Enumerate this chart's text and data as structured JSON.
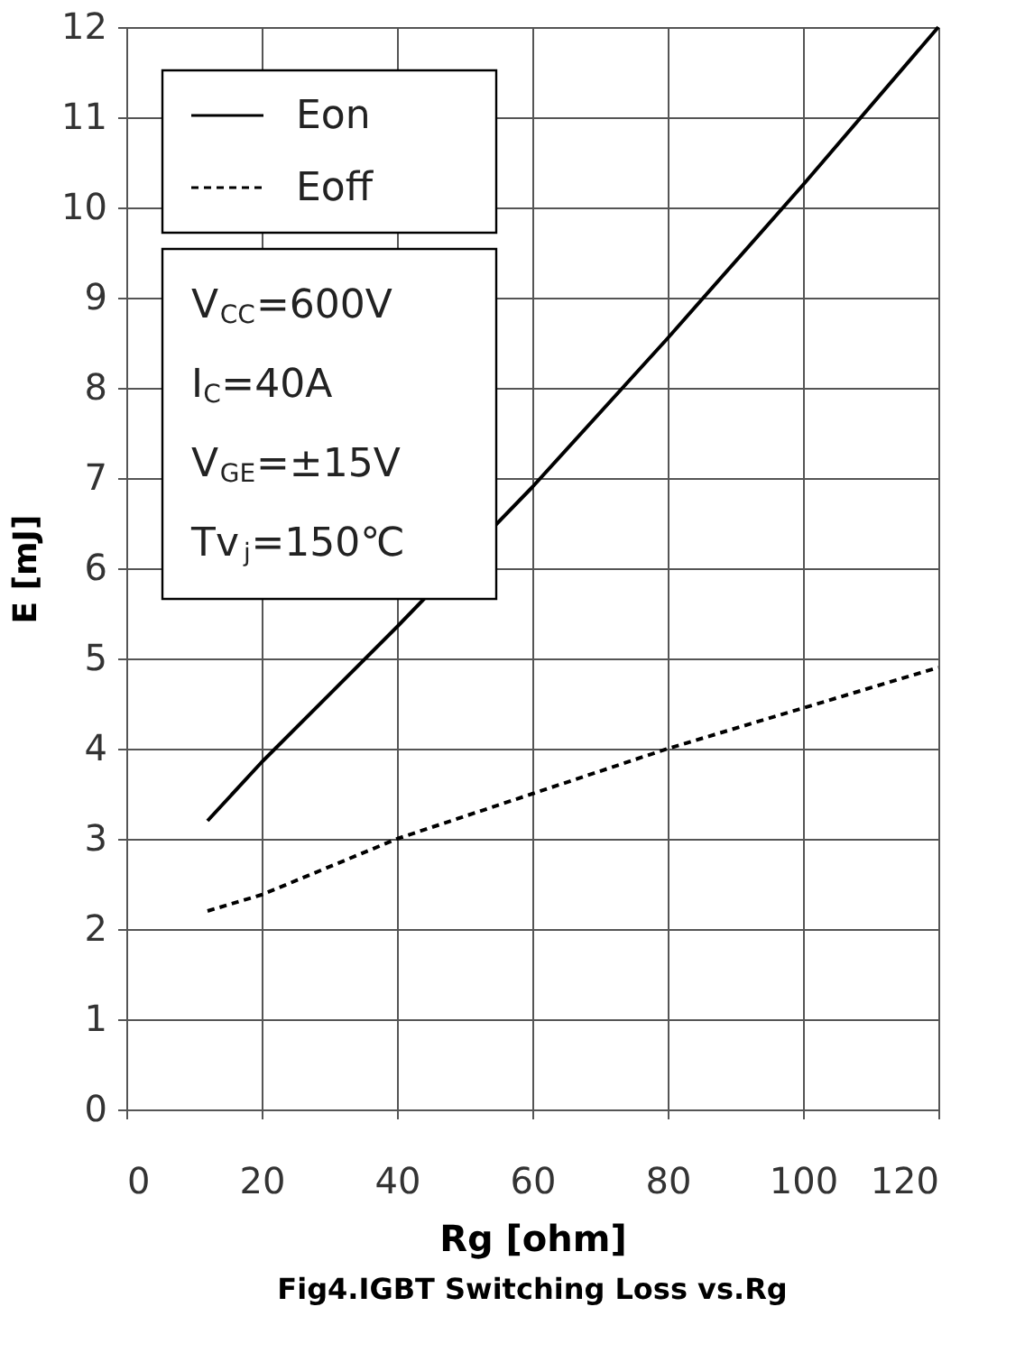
{
  "chart_data": {
    "type": "line",
    "title": "Fig4.IGBT Switching Loss vs.Rg",
    "xlabel": "Rg  [ohm]",
    "ylabel": "E  [mJ]",
    "xlim": [
      0,
      120
    ],
    "xticks": [
      0,
      20,
      40,
      60,
      80,
      100,
      120
    ],
    "ylim": [
      0,
      12
    ],
    "yticks": [
      0,
      1,
      2,
      3,
      4,
      5,
      6,
      7,
      8,
      9,
      10,
      11,
      12
    ],
    "grid": true,
    "legend": "top left",
    "marker": "none",
    "annotations": [
      "V$_{CC}$=600V",
      "I$_{C}$=40A",
      "V$_{GE}$=±15V",
      "Tv$_{j}$=150℃"
    ],
    "series": [
      {
        "name": "Eon",
        "color": "#000000",
        "line_style": "solid",
        "x": [
          12,
          20,
          40,
          60,
          80,
          100,
          120
        ],
        "values": [
          3.2,
          3.85,
          5.35,
          6.9,
          8.55,
          10.25,
          12.0
        ]
      },
      {
        "name": "Eoff",
        "color": "#000000",
        "line_style": "dashed",
        "x": [
          12,
          20,
          40,
          60,
          80,
          100,
          120
        ],
        "values": [
          2.2,
          2.38,
          3.0,
          3.5,
          4.0,
          4.45,
          4.9
        ]
      }
    ]
  }
}
